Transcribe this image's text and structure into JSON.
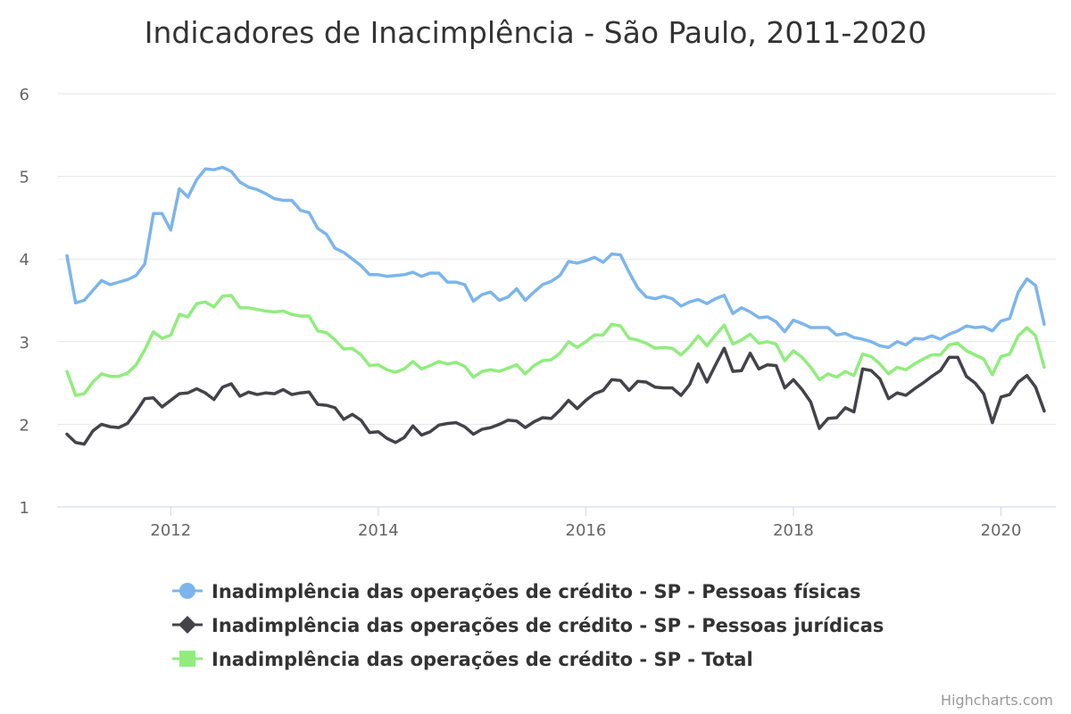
{
  "chart_data": {
    "type": "line",
    "title": "Indicadores de Inacimplência - São Paulo, 2011-2020",
    "xlabel": "",
    "ylabel": "",
    "x_start": "2011-01",
    "x_end": "2020-06",
    "x_ticks": [
      "2012",
      "2014",
      "2016",
      "2018",
      "2020"
    ],
    "y_ticks": [
      1,
      2,
      3,
      4,
      5,
      6
    ],
    "ylim": [
      1,
      6
    ],
    "grid": true,
    "legend_position": "bottom-center",
    "credits": "Highcharts.com",
    "series": [
      {
        "name": "Inadimplência das operações de crédito - SP - Pessoas físicas",
        "color": "#7cb5ec",
        "marker": "circle",
        "values": [
          4.04,
          3.47,
          3.5,
          3.62,
          3.74,
          3.69,
          3.72,
          3.75,
          3.8,
          3.94,
          4.55,
          4.55,
          4.35,
          4.85,
          4.75,
          4.96,
          5.09,
          5.08,
          5.11,
          5.06,
          4.93,
          4.87,
          4.84,
          4.79,
          4.73,
          4.71,
          4.71,
          4.59,
          4.56,
          4.37,
          4.3,
          4.13,
          4.08,
          4.0,
          3.92,
          3.81,
          3.81,
          3.79,
          3.8,
          3.81,
          3.84,
          3.79,
          3.83,
          3.83,
          3.72,
          3.72,
          3.69,
          3.49,
          3.57,
          3.6,
          3.5,
          3.54,
          3.64,
          3.5,
          3.6,
          3.69,
          3.73,
          3.8,
          3.97,
          3.95,
          3.98,
          4.02,
          3.96,
          4.06,
          4.05,
          3.84,
          3.65,
          3.54,
          3.52,
          3.55,
          3.52,
          3.43,
          3.48,
          3.51,
          3.46,
          3.52,
          3.56,
          3.34,
          3.41,
          3.36,
          3.29,
          3.3,
          3.24,
          3.12,
          3.26,
          3.22,
          3.17,
          3.17,
          3.17,
          3.08,
          3.1,
          3.05,
          3.03,
          3.0,
          2.95,
          2.93,
          3.0,
          2.96,
          3.04,
          3.03,
          3.07,
          3.03,
          3.09,
          3.13,
          3.19,
          3.17,
          3.18,
          3.13,
          3.25,
          3.28,
          3.6,
          3.76,
          3.68,
          3.21
        ]
      },
      {
        "name": "Inadimplência das operações de crédito - SP - Pessoas jurídicas",
        "color": "#434348",
        "marker": "diamond",
        "values": [
          1.88,
          1.78,
          1.76,
          1.92,
          2.0,
          1.97,
          1.96,
          2.01,
          2.15,
          2.31,
          2.32,
          2.21,
          2.29,
          2.37,
          2.38,
          2.43,
          2.38,
          2.3,
          2.45,
          2.49,
          2.34,
          2.39,
          2.36,
          2.38,
          2.37,
          2.42,
          2.36,
          2.38,
          2.39,
          2.24,
          2.23,
          2.2,
          2.06,
          2.12,
          2.05,
          1.9,
          1.91,
          1.83,
          1.78,
          1.84,
          1.98,
          1.87,
          1.91,
          1.99,
          2.01,
          2.02,
          1.97,
          1.88,
          1.94,
          1.96,
          2.0,
          2.05,
          2.04,
          1.96,
          2.03,
          2.08,
          2.07,
          2.17,
          2.29,
          2.19,
          2.29,
          2.37,
          2.41,
          2.54,
          2.53,
          2.41,
          2.52,
          2.51,
          2.45,
          2.44,
          2.44,
          2.35,
          2.48,
          2.73,
          2.51,
          2.72,
          2.92,
          2.64,
          2.65,
          2.86,
          2.67,
          2.72,
          2.71,
          2.44,
          2.54,
          2.42,
          2.27,
          1.95,
          2.07,
          2.08,
          2.2,
          2.15,
          2.67,
          2.65,
          2.55,
          2.31,
          2.38,
          2.35,
          2.43,
          2.5,
          2.58,
          2.65,
          2.81,
          2.81,
          2.58,
          2.5,
          2.37,
          2.02,
          2.33,
          2.36,
          2.51,
          2.59,
          2.45,
          2.16
        ]
      },
      {
        "name": "Inadimplência das operações de crédito - SP - Total",
        "color": "#90ed7d",
        "marker": "square",
        "values": [
          2.64,
          2.35,
          2.37,
          2.51,
          2.61,
          2.58,
          2.58,
          2.62,
          2.72,
          2.9,
          3.12,
          3.04,
          3.08,
          3.33,
          3.3,
          3.46,
          3.48,
          3.42,
          3.55,
          3.56,
          3.41,
          3.41,
          3.39,
          3.37,
          3.36,
          3.37,
          3.33,
          3.31,
          3.31,
          3.13,
          3.11,
          3.02,
          2.91,
          2.92,
          2.84,
          2.71,
          2.72,
          2.66,
          2.63,
          2.67,
          2.76,
          2.67,
          2.71,
          2.76,
          2.73,
          2.75,
          2.7,
          2.57,
          2.64,
          2.66,
          2.64,
          2.68,
          2.72,
          2.61,
          2.71,
          2.77,
          2.78,
          2.86,
          3.0,
          2.93,
          3.0,
          3.08,
          3.08,
          3.21,
          3.19,
          3.04,
          3.02,
          2.98,
          2.92,
          2.93,
          2.92,
          2.84,
          2.94,
          3.07,
          2.95,
          3.08,
          3.2,
          2.97,
          3.02,
          3.09,
          2.98,
          3.0,
          2.97,
          2.77,
          2.89,
          2.81,
          2.69,
          2.54,
          2.61,
          2.57,
          2.64,
          2.59,
          2.85,
          2.82,
          2.73,
          2.61,
          2.69,
          2.66,
          2.73,
          2.79,
          2.84,
          2.84,
          2.96,
          2.98,
          2.89,
          2.84,
          2.79,
          2.6,
          2.82,
          2.85,
          3.07,
          3.17,
          3.07,
          2.69
        ]
      }
    ]
  }
}
